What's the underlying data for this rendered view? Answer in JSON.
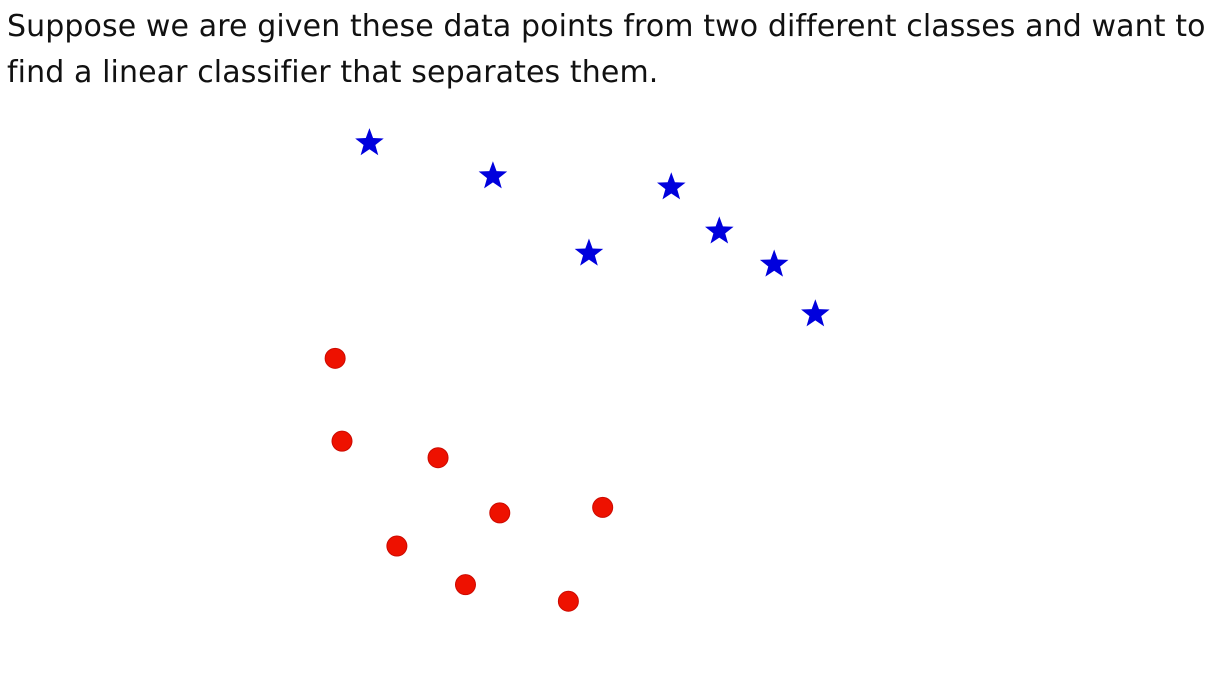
{
  "text": {
    "line1": "Suppose we are given these data points from two different classes and want to",
    "line2": "find a linear classifier that separates them."
  },
  "colors": {
    "star": "#0000dd",
    "dot": "#ee1100",
    "dot_edge": "#cc0a00",
    "text": "#111111"
  },
  "chart_data": {
    "type": "scatter",
    "title": "",
    "xlabel": "",
    "ylabel": "",
    "axes_visible": false,
    "grid": false,
    "legend": "none",
    "xlim": [
      0,
      10
    ],
    "ylim": [
      0,
      10
    ],
    "series": [
      {
        "marker": "star",
        "color": "#0000dd",
        "points": [
          [
            0.4,
            9.6
          ],
          [
            2.2,
            9.0
          ],
          [
            4.8,
            8.8
          ],
          [
            3.6,
            7.6
          ],
          [
            5.5,
            8.0
          ],
          [
            6.3,
            7.4
          ],
          [
            6.9,
            6.5
          ]
        ]
      },
      {
        "marker": "circle",
        "color": "#ee1100",
        "points": [
          [
            -0.1,
            5.7
          ],
          [
            0.0,
            4.2
          ],
          [
            1.4,
            3.9
          ],
          [
            2.3,
            2.9
          ],
          [
            3.8,
            3.0
          ],
          [
            0.8,
            2.3
          ],
          [
            1.8,
            1.6
          ],
          [
            3.3,
            1.3
          ]
        ]
      }
    ]
  }
}
